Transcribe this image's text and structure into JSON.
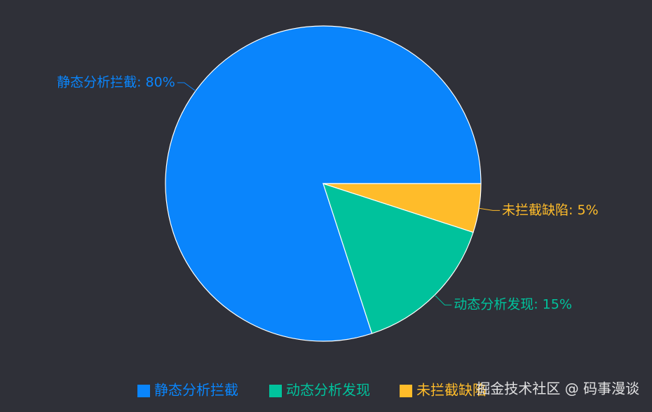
{
  "chart_data": {
    "type": "pie",
    "categories": [
      "静态分析拦截",
      "动态分析发现",
      "未拦截缺陷"
    ],
    "values": [
      80,
      15,
      5
    ],
    "labels": [
      "静态分析拦截: 80%",
      "动态分析发现: 15%",
      "未拦截缺陷: 5%"
    ],
    "colors": [
      "#0a85fc",
      "#00c29c",
      "#ffbc2a"
    ],
    "background": "#2f3038",
    "watermark": "掘金技术社区 @ 码事漫谈"
  }
}
